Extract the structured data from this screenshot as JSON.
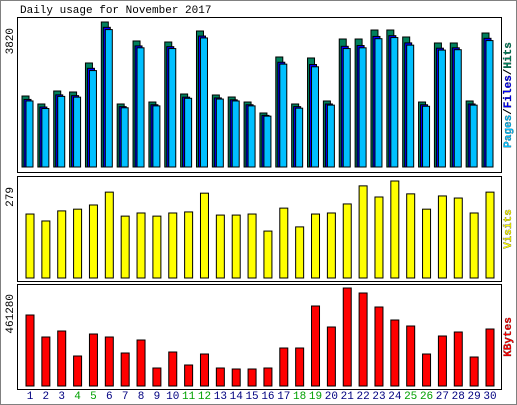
{
  "chart_data": [
    {
      "type": "bar",
      "title": "Daily usage for November 2017",
      "ylim": [
        0,
        3820
      ],
      "yticks": [
        3820
      ],
      "legend_separator": "/",
      "series": [
        {
          "name": "Hits",
          "color": "#00805c",
          "values": [
            1870,
            1660,
            2002,
            1976,
            2740,
            3820,
            1660,
            3320,
            1712,
            3293,
            1923,
            3583,
            1897,
            1844,
            1712,
            1423,
            2898,
            1660,
            2872,
            1739,
            3372,
            3372,
            3609,
            3609,
            3425,
            1712,
            3267,
            3267,
            1739,
            3530
          ]
        },
        {
          "name": "Files",
          "color": "#0000ff",
          "values": [
            1780,
            1580,
            1900,
            1880,
            2600,
            3680,
            1590,
            3190,
            1640,
            3170,
            1840,
            3450,
            1820,
            1770,
            1640,
            1360,
            2760,
            1590,
            2700,
            1660,
            3180,
            3200,
            3440,
            3460,
            3270,
            1640,
            3130,
            3140,
            1660,
            3390
          ]
        },
        {
          "name": "Pages",
          "color": "#00c0ff",
          "values": [
            1740,
            1540,
            1860,
            1840,
            2540,
            3620,
            1560,
            3140,
            1610,
            3120,
            1810,
            3400,
            1790,
            1740,
            1610,
            1340,
            2710,
            1550,
            2640,
            1630,
            3120,
            3140,
            3380,
            3410,
            3210,
            1600,
            3080,
            3090,
            1630,
            3330
          ]
        }
      ]
    },
    {
      "type": "bar",
      "ylim": [
        0,
        279
      ],
      "yticks": [
        279
      ],
      "series": [
        {
          "name": "Visits",
          "color": "#ffff00",
          "values": [
            184,
            164,
            193,
            198,
            210,
            247,
            178,
            187,
            178,
            187,
            190,
            244,
            181,
            181,
            184,
            135,
            201,
            147,
            184,
            187,
            213,
            265,
            233,
            279,
            242,
            198,
            236,
            230,
            187,
            247
          ]
        }
      ]
    },
    {
      "type": "bar",
      "ylim": [
        0,
        461280
      ],
      "yticks": [
        461280
      ],
      "categories": [
        "1",
        "2",
        "3",
        "4",
        "5",
        "6",
        "7",
        "8",
        "9",
        "10",
        "11",
        "12",
        "13",
        "14",
        "15",
        "16",
        "17",
        "18",
        "19",
        "20",
        "21",
        "22",
        "23",
        "24",
        "25",
        "26",
        "27",
        "28",
        "29",
        "30"
      ],
      "category_colors": [
        "#000080",
        "#000080",
        "#000080",
        "#00a000",
        "#00a000",
        "#000080",
        "#000080",
        "#000080",
        "#000080",
        "#000080",
        "#00a000",
        "#00a000",
        "#000080",
        "#000080",
        "#000080",
        "#000080",
        "#000080",
        "#00a000",
        "#00a000",
        "#000080",
        "#000080",
        "#000080",
        "#000080",
        "#000080",
        "#00a000",
        "#00a000",
        "#000080",
        "#000080",
        "#000080",
        "#000080"
      ],
      "series": [
        {
          "name": "KBytes",
          "color": "#ff0000",
          "values": [
            334190,
            230640,
            258880,
            141210,
            244760,
            230640,
            155330,
            216520,
            84730,
            160030,
            98850,
            150620,
            84730,
            80020,
            80020,
            84730,
            178860,
            178860,
            376560,
            277710,
            461280,
            437750,
            371850,
            310660,
            282420,
            150620,
            235350,
            254170,
            136500,
            268290
          ]
        }
      ]
    }
  ]
}
